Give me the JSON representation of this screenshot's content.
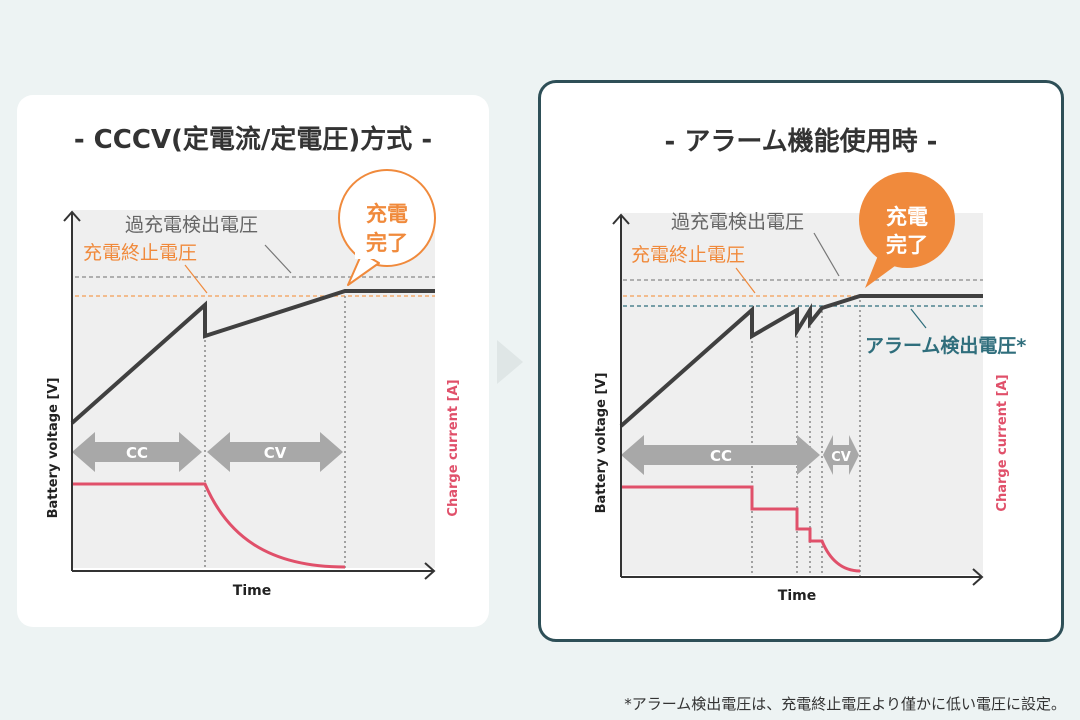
{
  "left": {
    "title": "- CCCV(定電流/定電圧)方式 -",
    "overvoltage_label": "過充電検出電圧",
    "endvoltage_label": "充電終止電圧",
    "bubble_line1": "充電",
    "bubble_line2": "完了",
    "cc_label": "CC",
    "cv_label": "CV",
    "y_left_label": "Battery voltage [V]",
    "y_right_label": "Charge current [A]",
    "x_label": "Time"
  },
  "right": {
    "title": "- アラーム機能使用時 -",
    "overvoltage_label": "過充電検出電圧",
    "endvoltage_label": "充電終止電圧",
    "alarm_label": "アラーム検出電圧*",
    "bubble_line1": "充電",
    "bubble_line2": "完了",
    "cc_label": "CC",
    "cv_label": "CV",
    "y_left_label": "Battery voltage [V]",
    "y_right_label": "Charge current [A]",
    "x_label": "Time"
  },
  "footnote": "*アラーム検出電圧は、充電終止電圧より僅かに低い電圧に設定。",
  "colors": {
    "voltage_line": "#404040",
    "current_line": "#e0506a",
    "orange": "#f08a3c",
    "teal": "#2f6e7c",
    "arrow_gray": "#a8a8a8",
    "plot_bg": "#efefef"
  }
}
